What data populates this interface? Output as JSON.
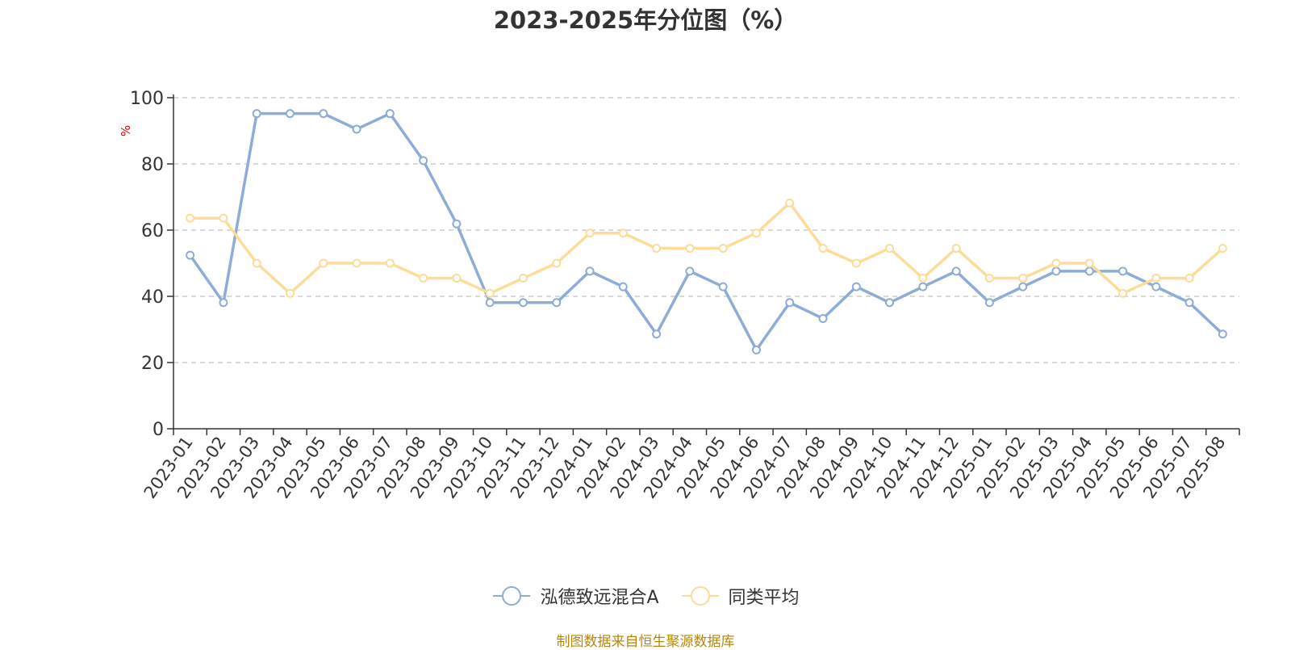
{
  "chart_data": {
    "type": "line",
    "title": "2023-2025年分位图（%）",
    "ylabel": "%",
    "xlabel": "",
    "ylim": [
      0,
      100
    ],
    "yticks": [
      0,
      20,
      40,
      60,
      80,
      100
    ],
    "grid": true,
    "legend_position": "bottom-center",
    "categories": [
      "2023-01",
      "2023-02",
      "2023-03",
      "2023-04",
      "2023-05",
      "2023-06",
      "2023-07",
      "2023-08",
      "2023-09",
      "2023-10",
      "2023-11",
      "2023-12",
      "2024-01",
      "2024-02",
      "2024-03",
      "2024-04",
      "2024-05",
      "2024-06",
      "2024-07",
      "2024-08",
      "2024-09",
      "2024-10",
      "2024-11",
      "2024-12",
      "2025-01",
      "2025-02",
      "2025-03",
      "2025-04",
      "2025-05",
      "2025-06",
      "2025-07",
      "2025-08"
    ],
    "series": [
      {
        "name": "泓德致远混合A",
        "color": "#8eacd8",
        "values": [
          52.4,
          38.1,
          95.2,
          95.2,
          95.2,
          90.5,
          95.2,
          81.0,
          61.9,
          38.1,
          38.1,
          38.1,
          47.6,
          42.9,
          28.6,
          47.6,
          42.9,
          23.8,
          38.1,
          33.3,
          42.9,
          38.1,
          42.9,
          47.6,
          38.1,
          42.9,
          47.6,
          47.6,
          47.6,
          42.9,
          38.1,
          28.6
        ]
      },
      {
        "name": "同类平均",
        "color": "#fddc9a",
        "values": [
          63.6,
          63.6,
          50.0,
          40.9,
          50.0,
          50.0,
          50.0,
          45.5,
          45.5,
          40.9,
          45.5,
          50.0,
          59.1,
          59.1,
          54.5,
          54.5,
          54.5,
          59.1,
          68.2,
          54.5,
          50.0,
          54.5,
          45.5,
          54.5,
          45.5,
          45.5,
          50.0,
          50.0,
          40.9,
          45.5,
          45.5,
          54.5
        ]
      }
    ]
  },
  "source_text": "制图数据来自恒生聚源数据库"
}
